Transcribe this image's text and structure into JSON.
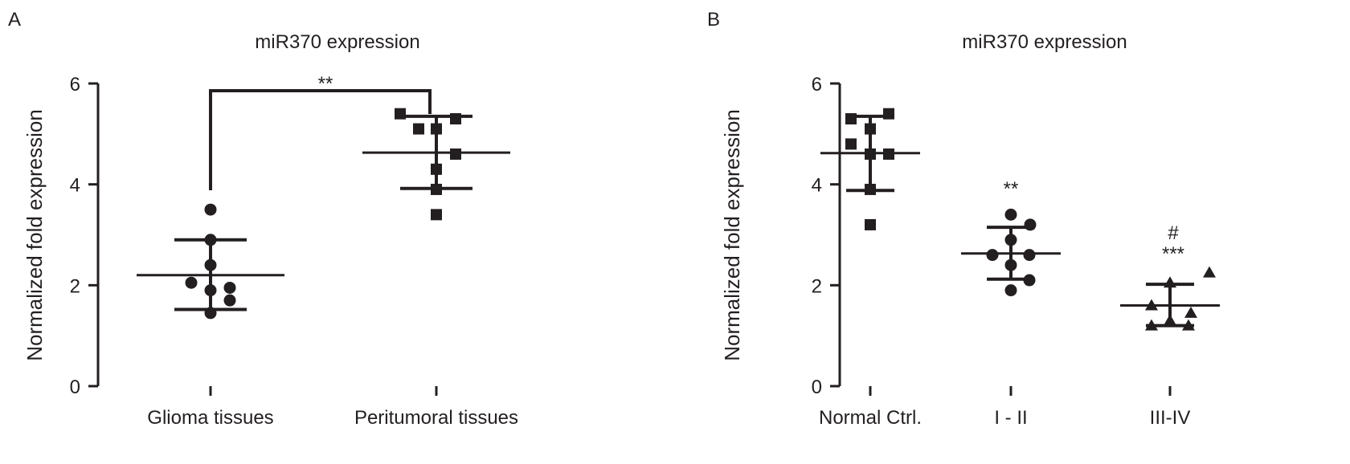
{
  "chart_data": [
    {
      "panel_label": "A",
      "type": "scatter",
      "title": "miR370 expression",
      "ylabel": "Normalized  fold expression",
      "xlabel": "",
      "ylim": [
        0,
        6
      ],
      "yticks": [
        "0",
        "2",
        "4",
        "6"
      ],
      "categories": [
        "Glioma tissues",
        "Peritumoral tissues"
      ],
      "series": [
        {
          "name": "Glioma tissues",
          "marker": "circle",
          "values": [
            3.5,
            2.9,
            2.4,
            2.05,
            1.95,
            1.9,
            1.7,
            1.45
          ],
          "mean": 2.2,
          "sd_upper": 2.9,
          "sd_lower": 1.52
        },
        {
          "name": "Peritumoral tissues",
          "marker": "square",
          "values": [
            5.4,
            5.3,
            5.1,
            5.1,
            4.6,
            4.3,
            3.9,
            3.4
          ],
          "mean": 4.63,
          "sd_upper": 5.35,
          "sd_lower": 3.92
        }
      ],
      "annotations": [
        {
          "text": "**",
          "type": "bracket",
          "between": [
            "Glioma tissues",
            "Peritumoral tissues"
          ]
        }
      ]
    },
    {
      "panel_label": "B",
      "type": "scatter",
      "title": "miR370 expression",
      "ylabel": "Normalized  fold expression",
      "xlabel": "",
      "ylim": [
        0,
        6
      ],
      "yticks": [
        "0",
        "2",
        "4",
        "6"
      ],
      "categories": [
        "Normal Ctrl.",
        "I - II",
        "III-IV"
      ],
      "series": [
        {
          "name": "Normal Ctrl.",
          "marker": "square",
          "values": [
            5.4,
            5.3,
            5.1,
            4.8,
            4.6,
            4.6,
            3.9,
            3.2
          ],
          "mean": 4.62,
          "sd_upper": 5.35,
          "sd_lower": 3.88
        },
        {
          "name": "I - II",
          "marker": "circle",
          "values": [
            3.4,
            3.2,
            2.9,
            2.6,
            2.6,
            2.4,
            2.1,
            1.9
          ],
          "mean": 2.63,
          "sd_upper": 3.15,
          "sd_lower": 2.12
        },
        {
          "name": "III-IV",
          "marker": "triangle",
          "values": [
            2.25,
            2.05,
            1.6,
            1.45,
            1.3,
            1.2,
            1.2
          ],
          "mean": 1.6,
          "sd_upper": 2.02,
          "sd_lower": 1.2
        }
      ],
      "annotations": [
        {
          "text": "**",
          "group": "I - II"
        },
        {
          "text": "#",
          "group": "III-IV"
        },
        {
          "text": "***",
          "group": "III-IV"
        }
      ]
    }
  ]
}
